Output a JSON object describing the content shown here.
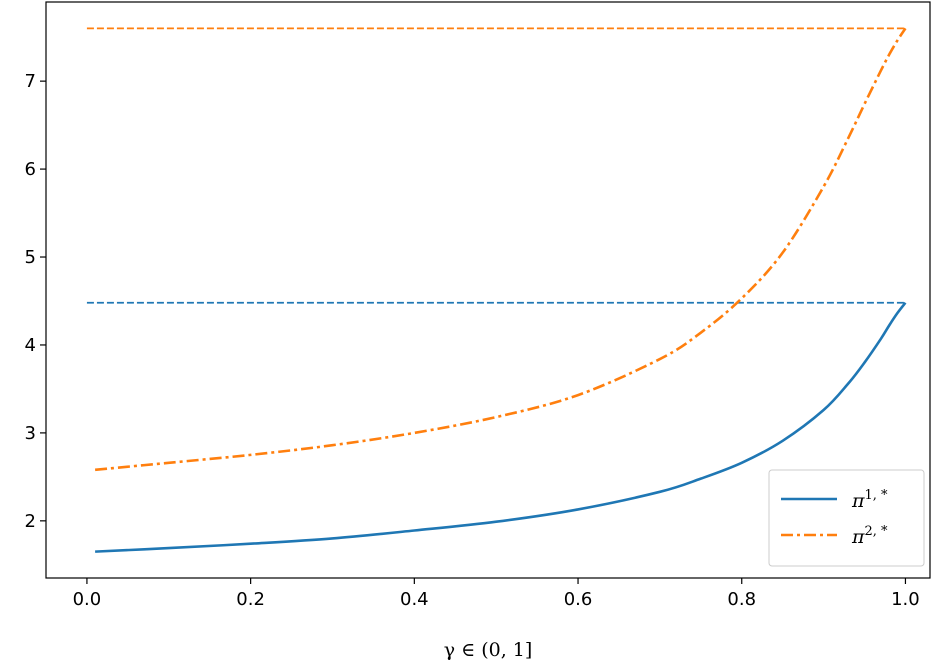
{
  "chart_data": {
    "type": "line",
    "title": "",
    "xlabel": "γ ∈ (0, 1]",
    "ylabel": "",
    "xlim": [
      -0.05,
      1.03
    ],
    "ylim": [
      1.35,
      7.9
    ],
    "xticks": [
      0.0,
      0.2,
      0.4,
      0.6,
      0.8,
      1.0
    ],
    "xtick_labels": [
      "0.0",
      "0.2",
      "0.4",
      "0.6",
      "0.8",
      "1.0"
    ],
    "yticks": [
      2,
      3,
      4,
      5,
      6,
      7
    ],
    "ytick_labels": [
      "2",
      "3",
      "4",
      "5",
      "6",
      "7"
    ],
    "grid": false,
    "legend_position": "lower-right",
    "x": [
      0.01,
      0.1,
      0.2,
      0.3,
      0.4,
      0.5,
      0.6,
      0.7,
      0.75,
      0.8,
      0.85,
      0.9,
      0.93,
      0.95,
      0.97,
      0.98,
      0.99,
      1.0
    ],
    "series": [
      {
        "name": "π",
        "sup": "1, *",
        "color": "#1f77b4",
        "style": "solid",
        "values": [
          1.65,
          1.69,
          1.74,
          1.8,
          1.89,
          1.99,
          2.13,
          2.33,
          2.48,
          2.66,
          2.91,
          3.26,
          3.56,
          3.8,
          4.07,
          4.22,
          4.36,
          4.48
        ]
      },
      {
        "name": "π",
        "sup": "2, *",
        "color": "#ff7f0e",
        "style": "dashdot",
        "values": [
          2.58,
          2.66,
          2.75,
          2.86,
          3.0,
          3.18,
          3.43,
          3.84,
          4.14,
          4.53,
          5.05,
          5.8,
          6.35,
          6.74,
          7.12,
          7.3,
          7.46,
          7.6
        ]
      }
    ],
    "reference_lines": [
      {
        "y": 4.48,
        "color": "#1f77b4",
        "style": "dashed",
        "x_range": [
          0.0,
          1.0
        ]
      },
      {
        "y": 7.6,
        "color": "#ff7f0e",
        "style": "dashed",
        "x_range": [
          0.0,
          1.0
        ]
      }
    ]
  }
}
